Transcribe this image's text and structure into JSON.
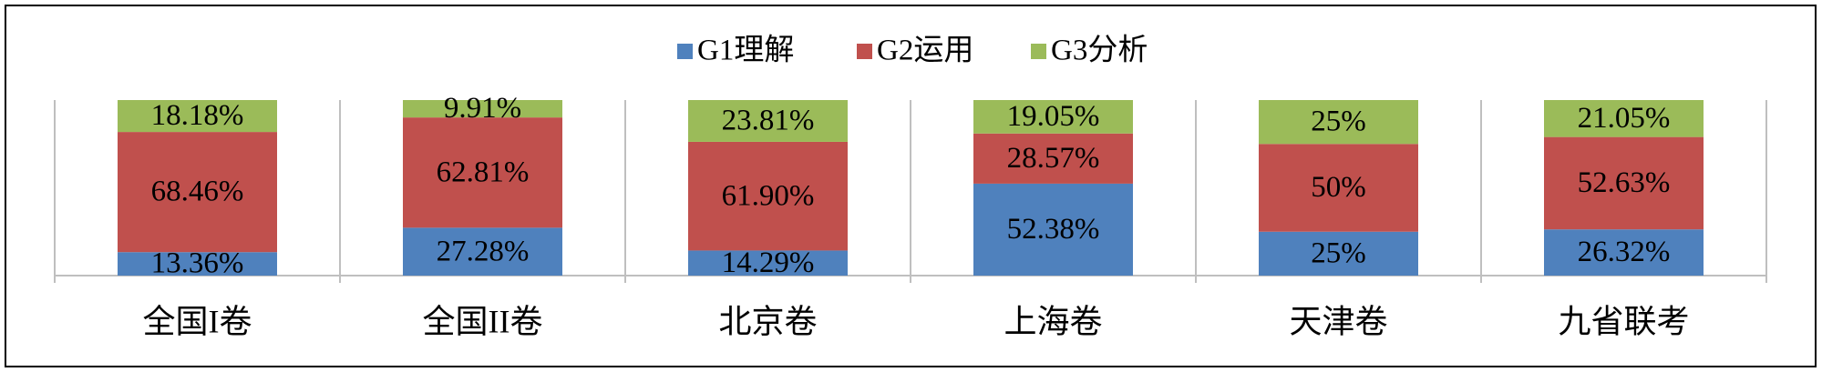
{
  "chart_data": {
    "type": "stacked-bar",
    "categories": [
      "全国I卷",
      "全国II卷",
      "北京卷",
      "上海卷",
      "天津卷",
      "九省联考"
    ],
    "series": [
      {
        "name": "G1理解",
        "color": "#4f81bd",
        "values": [
          13.36,
          27.28,
          14.29,
          52.38,
          25,
          26.32
        ],
        "value_labels": [
          "13.36%",
          "27.28%",
          "14.29%",
          "52.38%",
          "25%",
          "26.32%"
        ]
      },
      {
        "name": "G2运用",
        "color": "#c0504d",
        "values": [
          68.46,
          62.81,
          61.9,
          28.57,
          50,
          52.63
        ],
        "value_labels": [
          "68.46%",
          "62.81%",
          "61.90%",
          "28.57%",
          "50%",
          "52.63%"
        ]
      },
      {
        "name": "G3分析",
        "color": "#9bbb59",
        "values": [
          18.18,
          9.91,
          23.81,
          19.05,
          25,
          21.05
        ],
        "value_labels": [
          "18.18%",
          "9.91%",
          "23.81%",
          "19.05%",
          "25%",
          "21.05%"
        ]
      }
    ],
    "ylim": [
      0,
      100
    ],
    "legend": "top"
  }
}
